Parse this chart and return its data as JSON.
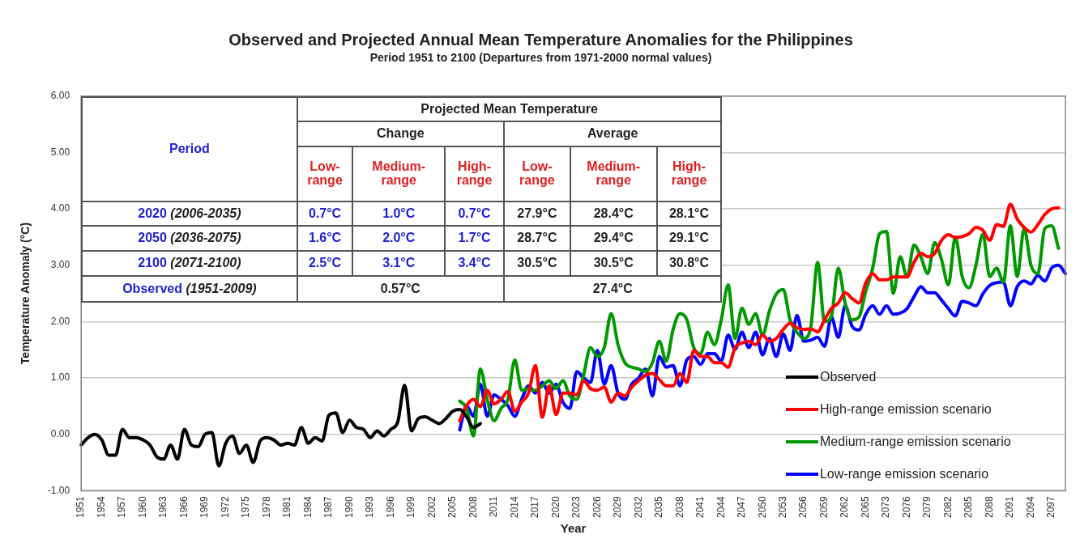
{
  "chart_data": {
    "type": "line",
    "title": "Observed and Projected Annual Mean Temperature Anomalies for the Philippines",
    "subtitle": "Period 1951 to 2100 (Departures from 1971-2000 normal values)",
    "xlabel": "Year",
    "ylabel": "Temperature Anomaly (°C)",
    "categories": [
      "1951",
      null,
      null,
      "1954",
      null,
      null,
      "1957",
      null,
      null,
      "1960",
      null,
      null,
      "1963",
      null,
      null,
      "1966",
      null,
      null,
      "1969",
      null,
      null,
      "1972",
      null,
      null,
      "1975",
      null,
      null,
      "1978",
      null,
      null,
      "1981",
      null,
      null,
      "1984",
      null,
      null,
      "1987",
      null,
      null,
      "1990",
      null,
      null,
      "1993",
      null,
      null,
      "1996",
      null,
      null,
      "1999",
      null,
      null,
      "2002",
      null,
      null,
      "2005",
      null,
      null,
      "2008",
      null,
      null,
      "2011",
      null,
      null,
      "2014",
      null,
      null,
      "2017",
      null,
      null,
      "2020",
      null,
      null,
      "2023",
      null,
      null,
      "2026",
      null,
      null,
      "2029",
      null,
      null,
      "2032",
      null,
      null,
      "2035",
      null,
      null,
      "2038",
      null,
      null,
      "2041",
      null,
      null,
      "2044",
      null,
      null,
      "2047",
      null,
      null,
      "2050",
      null,
      null,
      "2053",
      null,
      null,
      "2056",
      null,
      null,
      "2059",
      null,
      null,
      "2062",
      null,
      null,
      "2065",
      null,
      null,
      "2073",
      null,
      null,
      "2076",
      null,
      null,
      "2079",
      null,
      null,
      "2082",
      null,
      null,
      "2085",
      null,
      null,
      "2088",
      null,
      null,
      "2091",
      null,
      null,
      "2094",
      null,
      null,
      "2097",
      null,
      null
    ],
    "series": [
      {
        "name": "Observed",
        "color": "#000000",
        "values": [
          -0.19,
          -0.06,
          0.0,
          -0.1,
          -0.37,
          -0.37,
          0.09,
          -0.06,
          -0.06,
          -0.1,
          -0.19,
          -0.4,
          -0.44,
          -0.19,
          -0.44,
          0.09,
          -0.19,
          -0.22,
          0.0,
          0.03,
          -0.56,
          -0.16,
          -0.03,
          -0.34,
          -0.19,
          -0.5,
          -0.12,
          -0.06,
          -0.1,
          -0.19,
          -0.16,
          -0.19,
          0.12,
          -0.16,
          -0.06,
          -0.12,
          0.34,
          0.38,
          0.03,
          0.25,
          0.12,
          0.09,
          -0.06,
          0.06,
          -0.03,
          0.09,
          0.22,
          0.87,
          0.06,
          0.28,
          0.31,
          0.25,
          0.19,
          0.28,
          0.41,
          0.44,
          0.31,
          0.12,
          0.19,
          null,
          null,
          null,
          null,
          null,
          null,
          null,
          null,
          null,
          null,
          null,
          null,
          null,
          null,
          null,
          null,
          null,
          null,
          null,
          null,
          null,
          null,
          null,
          null,
          null,
          null,
          null,
          null,
          null,
          null,
          null,
          null,
          null,
          null,
          null,
          null,
          null,
          null,
          null,
          null,
          null,
          null,
          null,
          null,
          null,
          null,
          null,
          null,
          null,
          null,
          null,
          null,
          null,
          null,
          null,
          null,
          null,
          null,
          null,
          null,
          null,
          null,
          null,
          null,
          null,
          null,
          null,
          null,
          null,
          null,
          null,
          null,
          null,
          null,
          null,
          null,
          null,
          null,
          null,
          null,
          null,
          null,
          null,
          null,
          null
        ]
      },
      {
        "name": "High-range emission scenario",
        "color": "#ff0000",
        "values": [
          null,
          null,
          null,
          null,
          null,
          null,
          null,
          null,
          null,
          null,
          null,
          null,
          null,
          null,
          null,
          null,
          null,
          null,
          null,
          null,
          null,
          null,
          null,
          null,
          null,
          null,
          null,
          null,
          null,
          null,
          null,
          null,
          null,
          null,
          null,
          null,
          null,
          null,
          null,
          null,
          null,
          null,
          null,
          null,
          null,
          null,
          null,
          null,
          null,
          null,
          null,
          null,
          null,
          null,
          null,
          0.24,
          0.51,
          0.62,
          0.49,
          0.78,
          0.54,
          0.62,
          0.76,
          0.41,
          0.57,
          0.73,
          1.22,
          0.3,
          0.86,
          0.35,
          0.73,
          0.73,
          0.7,
          0.95,
          0.81,
          0.78,
          0.84,
          0.57,
          0.73,
          0.68,
          0.84,
          0.95,
          1.05,
          1.08,
          0.97,
          0.86,
          0.86,
          1.08,
          0.92,
          1.49,
          1.38,
          1.38,
          1.27,
          1.27,
          1.19,
          1.54,
          1.62,
          1.65,
          1.59,
          1.76,
          1.65,
          1.7,
          1.86,
          1.97,
          1.89,
          1.86,
          1.87,
          1.82,
          2.03,
          2.23,
          2.33,
          2.51,
          2.41,
          2.33,
          2.69,
          2.85,
          2.74,
          2.74,
          2.79,
          2.79,
          2.79,
          3.05,
          3.21,
          3.15,
          3.21,
          3.44,
          3.54,
          3.49,
          3.51,
          3.56,
          3.67,
          3.62,
          3.44,
          3.72,
          3.69,
          4.08,
          3.82,
          3.67,
          3.59,
          3.72,
          3.9,
          4.0,
          4.02,
          null
        ]
      },
      {
        "name": "Medium-range emission scenario",
        "color": "#009900",
        "values": [
          null,
          null,
          null,
          null,
          null,
          null,
          null,
          null,
          null,
          null,
          null,
          null,
          null,
          null,
          null,
          null,
          null,
          null,
          null,
          null,
          null,
          null,
          null,
          null,
          null,
          null,
          null,
          null,
          null,
          null,
          null,
          null,
          null,
          null,
          null,
          null,
          null,
          null,
          null,
          null,
          null,
          null,
          null,
          null,
          null,
          null,
          null,
          null,
          null,
          null,
          null,
          null,
          null,
          null,
          null,
          0.59,
          0.46,
          -0.03,
          1.16,
          0.62,
          0.24,
          0.46,
          0.62,
          1.32,
          0.78,
          0.81,
          0.78,
          0.86,
          0.95,
          0.81,
          0.95,
          0.68,
          0.62,
          1.05,
          1.54,
          1.38,
          1.54,
          2.14,
          1.59,
          1.27,
          1.19,
          1.16,
          1.11,
          1.27,
          1.65,
          1.3,
          1.86,
          2.14,
          2.03,
          1.54,
          1.43,
          1.81,
          1.59,
          2.03,
          2.65,
          1.7,
          2.24,
          1.95,
          2.14,
          1.76,
          2.19,
          2.49,
          2.57,
          2.03,
          1.81,
          1.7,
          1.9,
          3.05,
          2.0,
          2.1,
          2.95,
          2.33,
          2.03,
          2.08,
          2.54,
          2.95,
          3.56,
          3.6,
          2.5,
          3.15,
          2.79,
          3.36,
          3.15,
          2.85,
          3.4,
          3.1,
          2.65,
          3.5,
          2.8,
          2.6,
          3.0,
          3.55,
          2.8,
          2.95,
          2.7,
          3.7,
          2.8,
          3.65,
          3.0,
          2.85,
          3.65,
          3.7,
          3.3,
          null
        ]
      },
      {
        "name": "Low-range emission scenario",
        "color": "#0000ff",
        "values": [
          null,
          null,
          null,
          null,
          null,
          null,
          null,
          null,
          null,
          null,
          null,
          null,
          null,
          null,
          null,
          null,
          null,
          null,
          null,
          null,
          null,
          null,
          null,
          null,
          null,
          null,
          null,
          null,
          null,
          null,
          null,
          null,
          null,
          null,
          null,
          null,
          null,
          null,
          null,
          null,
          null,
          null,
          null,
          null,
          null,
          null,
          null,
          null,
          null,
          null,
          null,
          null,
          null,
          null,
          null,
          0.08,
          0.51,
          0.32,
          0.89,
          0.32,
          0.7,
          0.62,
          0.51,
          0.32,
          0.62,
          0.86,
          0.73,
          0.92,
          0.73,
          0.89,
          0.57,
          0.46,
          1.11,
          1.0,
          0.92,
          1.49,
          0.89,
          1.22,
          0.73,
          0.62,
          0.89,
          1.0,
          1.16,
          0.68,
          1.38,
          1.19,
          1.22,
          0.86,
          1.32,
          1.38,
          1.24,
          1.43,
          1.43,
          1.3,
          1.76,
          1.51,
          1.81,
          1.54,
          1.81,
          1.41,
          1.7,
          1.38,
          1.78,
          1.49,
          2.11,
          1.65,
          1.67,
          1.72,
          1.56,
          2.08,
          1.72,
          2.28,
          1.92,
          1.85,
          2.13,
          2.28,
          2.13,
          2.28,
          2.13,
          2.15,
          2.23,
          2.44,
          2.62,
          2.51,
          2.51,
          2.38,
          2.23,
          2.1,
          2.36,
          2.33,
          2.28,
          2.49,
          2.64,
          2.69,
          2.7,
          2.28,
          2.62,
          2.72,
          2.67,
          2.82,
          2.72,
          2.95,
          3.0,
          2.85
        ]
      }
    ],
    "ylim": [
      -1,
      6
    ],
    "yticks": [
      {
        "value": -1,
        "label": "-1.00"
      },
      {
        "value": 0,
        "label": "0.00"
      },
      {
        "value": 1,
        "label": "1.00"
      },
      {
        "value": 2,
        "label": "2.00"
      },
      {
        "value": 3,
        "label": "3.00"
      },
      {
        "value": 4,
        "label": "4.00"
      },
      {
        "value": 5,
        "label": "5.00"
      },
      {
        "value": 6,
        "label": "6.00"
      }
    ],
    "grid": "y",
    "legend": "bottom right",
    "marker": "none",
    "line_style": "solid",
    "annotations": [
      "Projected Mean Temperature",
      "Period",
      "Change",
      "Average",
      "Low-range",
      "Medium-range",
      "High-range",
      "Low-range",
      "Medium-range",
      "High-range",
      "2020 (2006-2035)",
      "0.7°C",
      "1.0°C",
      "0.7°C",
      "27.9°C",
      "28.4°C",
      "28.1°C",
      "2050 (2036-2075)",
      "1.6°C",
      "2.0°C",
      "1.7°C",
      "28.7°C",
      "29.4°C",
      "29.1°C",
      "2100 (2071-2100)",
      "2.5°C",
      "3.1°C",
      "3.4°C",
      "30.5°C",
      "30.5°C",
      "30.8°C",
      "Observed (1951-2009)",
      "0.57°C",
      "27.4°C"
    ]
  }
}
